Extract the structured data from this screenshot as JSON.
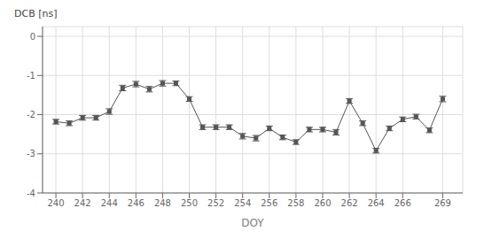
{
  "chart_data": {
    "type": "line",
    "x": [
      240,
      241,
      242,
      243,
      244,
      245,
      246,
      247,
      248,
      249,
      250,
      251,
      252,
      253,
      254,
      255,
      256,
      257,
      258,
      259,
      260,
      261,
      262,
      263,
      264,
      265,
      266,
      267,
      268,
      269
    ],
    "values": [
      -2.18,
      -2.22,
      -2.08,
      -2.08,
      -1.92,
      -1.32,
      -1.22,
      -1.35,
      -1.2,
      -1.2,
      -1.6,
      -2.32,
      -2.32,
      -2.32,
      -2.55,
      -2.6,
      -2.35,
      -2.58,
      -2.7,
      -2.38,
      -2.38,
      -2.45,
      -1.65,
      -2.22,
      -2.92,
      -2.35,
      -2.12,
      -2.05,
      -2.4,
      -1.6
    ],
    "yerr": [
      0.06,
      0.06,
      0.06,
      0.06,
      0.07,
      0.07,
      0.07,
      0.07,
      0.07,
      0.06,
      0.06,
      0.06,
      0.06,
      0.06,
      0.07,
      0.07,
      0.06,
      0.06,
      0.06,
      0.06,
      0.06,
      0.07,
      0.06,
      0.06,
      0.06,
      0.06,
      0.06,
      0.06,
      0.06,
      0.07
    ],
    "xlabel": "DOY",
    "ylabel": "DCB [ns]",
    "xlim": [
      239.0,
      270.5
    ],
    "ylim": [
      -4.0,
      0.25
    ],
    "xticks": [
      240,
      242,
      244,
      246,
      248,
      250,
      252,
      254,
      256,
      258,
      260,
      262,
      264,
      266,
      269
    ],
    "yticks": [
      0,
      -1,
      -2,
      -3,
      -4
    ],
    "color": "#555555",
    "marker": "square",
    "grid": true
  }
}
